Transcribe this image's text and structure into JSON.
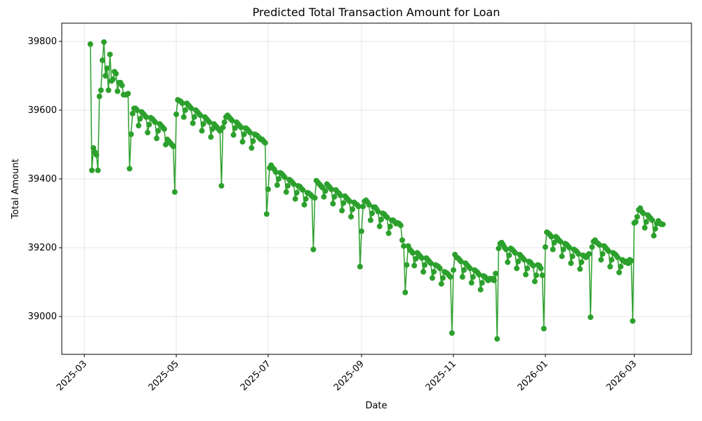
{
  "chart_data": {
    "type": "line",
    "title": "Predicted Total Transaction Amount for Loan",
    "xlabel": "Date",
    "ylabel": "Total Amount",
    "color": "#2ca02c",
    "grid": true,
    "ylim": [
      38890,
      39853
    ],
    "yticks": [
      39000,
      39200,
      39400,
      39600,
      39800
    ],
    "xticks": [
      "2025-03",
      "2025-05",
      "2025-07",
      "2025-09",
      "2025-11",
      "2026-01",
      "2026-03"
    ],
    "x": [
      "2025-03",
      "2025-03",
      "2025-03",
      "2025-03",
      "2025-03",
      "2025-03",
      "2025-03",
      "2025-03",
      "2025-03",
      "2025-03",
      "2025-03",
      "2025-03",
      "2025-03",
      "2025-03",
      "2025-03",
      "2025-03",
      "2025-03",
      "2025-03",
      "2025-03",
      "2025-03",
      "2025-03",
      "2025-03",
      "2025-03",
      "2025-03",
      "2025-03",
      "2025-03",
      "2025-03",
      "2025-04",
      "2025-04",
      "2025-04",
      "2025-04",
      "2025-04",
      "2025-04",
      "2025-04",
      "2025-04",
      "2025-04",
      "2025-04",
      "2025-04",
      "2025-04",
      "2025-04",
      "2025-04",
      "2025-04",
      "2025-04",
      "2025-04",
      "2025-04",
      "2025-04",
      "2025-04",
      "2025-04",
      "2025-04",
      "2025-04",
      "2025-04",
      "2025-04",
      "2025-04",
      "2025-04",
      "2025-04",
      "2025-04",
      "2025-04",
      "2025-05",
      "2025-05",
      "2025-05",
      "2025-05",
      "2025-05",
      "2025-05",
      "2025-05",
      "2025-05",
      "2025-05",
      "2025-05",
      "2025-05",
      "2025-05",
      "2025-05",
      "2025-05",
      "2025-05",
      "2025-05",
      "2025-05",
      "2025-05",
      "2025-05",
      "2025-05",
      "2025-05",
      "2025-05",
      "2025-05",
      "2025-05",
      "2025-05",
      "2025-05",
      "2025-05",
      "2025-05",
      "2025-05",
      "2025-05",
      "2025-05",
      "2025-06",
      "2025-06",
      "2025-06",
      "2025-06",
      "2025-06",
      "2025-06",
      "2025-06",
      "2025-06",
      "2025-06",
      "2025-06",
      "2025-06",
      "2025-06",
      "2025-06",
      "2025-06",
      "2025-06",
      "2025-06",
      "2025-06",
      "2025-06",
      "2025-06",
      "2025-06",
      "2025-06",
      "2025-06",
      "2025-06",
      "2025-06",
      "2025-06",
      "2025-06",
      "2025-06",
      "2025-06",
      "2025-06",
      "2025-06",
      "2025-07",
      "2025-07",
      "2025-07",
      "2025-07",
      "2025-07",
      "2025-07",
      "2025-07",
      "2025-07",
      "2025-07",
      "2025-07",
      "2025-07",
      "2025-07",
      "2025-07",
      "2025-07",
      "2025-07",
      "2025-07",
      "2025-07",
      "2025-07",
      "2025-07",
      "2025-07",
      "2025-07",
      "2025-07",
      "2025-07",
      "2025-07",
      "2025-07",
      "2025-07",
      "2025-07",
      "2025-07",
      "2025-07",
      "2025-07",
      "2025-07",
      "2025-08",
      "2025-08",
      "2025-08",
      "2025-08",
      "2025-08",
      "2025-08",
      "2025-08",
      "2025-08",
      "2025-08",
      "2025-08",
      "2025-08",
      "2025-08",
      "2025-08",
      "2025-08",
      "2025-08",
      "2025-08",
      "2025-08",
      "2025-08",
      "2025-08",
      "2025-08",
      "2025-08",
      "2025-08",
      "2025-08",
      "2025-08",
      "2025-08",
      "2025-08",
      "2025-08",
      "2025-08",
      "2025-08",
      "2025-08",
      "2025-08",
      "2025-09",
      "2025-09",
      "2025-09",
      "2025-09",
      "2025-09",
      "2025-09",
      "2025-09",
      "2025-09",
      "2025-09",
      "2025-09",
      "2025-09",
      "2025-09",
      "2025-09",
      "2025-09",
      "2025-09",
      "2025-09",
      "2025-09",
      "2025-09",
      "2025-09",
      "2025-09",
      "2025-09",
      "2025-09",
      "2025-09",
      "2025-09",
      "2025-09",
      "2025-09",
      "2025-09",
      "2025-09",
      "2025-09",
      "2025-09",
      "2025-10",
      "2025-10",
      "2025-10",
      "2025-10",
      "2025-10",
      "2025-10",
      "2025-10",
      "2025-10",
      "2025-10",
      "2025-10",
      "2025-10",
      "2025-10",
      "2025-10",
      "2025-10",
      "2025-10",
      "2025-10",
      "2025-10",
      "2025-10",
      "2025-10",
      "2025-10",
      "2025-10",
      "2025-10",
      "2025-10",
      "2025-10",
      "2025-10",
      "2025-10",
      "2025-10",
      "2025-10",
      "2025-10",
      "2025-10",
      "2025-10",
      "2025-11",
      "2025-11",
      "2025-11",
      "2025-11",
      "2025-11",
      "2025-11",
      "2025-11",
      "2025-11",
      "2025-11",
      "2025-11",
      "2025-11",
      "2025-11",
      "2025-11",
      "2025-11",
      "2025-11",
      "2025-11",
      "2025-11",
      "2025-11",
      "2025-11",
      "2025-11",
      "2025-11",
      "2025-11",
      "2025-11",
      "2025-11",
      "2025-11",
      "2025-11",
      "2025-11",
      "2025-11",
      "2025-11",
      "2025-11",
      "2025-12",
      "2025-12",
      "2025-12",
      "2025-12",
      "2025-12",
      "2025-12",
      "2025-12",
      "2025-12",
      "2025-12",
      "2025-12",
      "2025-12",
      "2025-12",
      "2025-12",
      "2025-12",
      "2025-12",
      "2025-12",
      "2025-12",
      "2025-12",
      "2025-12",
      "2025-12",
      "2025-12",
      "2025-12",
      "2025-12",
      "2025-12",
      "2025-12",
      "2025-12",
      "2025-12",
      "2025-12",
      "2025-12",
      "2025-12",
      "2025-12",
      "2026-01",
      "2026-01",
      "2026-01",
      "2026-01",
      "2026-01",
      "2026-01",
      "2026-01",
      "2026-01",
      "2026-01",
      "2026-01",
      "2026-01",
      "2026-01",
      "2026-01",
      "2026-01",
      "2026-01",
      "2026-01",
      "2026-01",
      "2026-01",
      "2026-01",
      "2026-01",
      "2026-01",
      "2026-01",
      "2026-01",
      "2026-01",
      "2026-01",
      "2026-01",
      "2026-01",
      "2026-01",
      "2026-01",
      "2026-01",
      "2026-01",
      "2026-02",
      "2026-02",
      "2026-02",
      "2026-02",
      "2026-02",
      "2026-02",
      "2026-02",
      "2026-02",
      "2026-02",
      "2026-02",
      "2026-02",
      "2026-02",
      "2026-02",
      "2026-02",
      "2026-02",
      "2026-02",
      "2026-02",
      "2026-02",
      "2026-02",
      "2026-02",
      "2026-02",
      "2026-02",
      "2026-02",
      "2026-02",
      "2026-02",
      "2026-02",
      "2026-02",
      "2026-02",
      "2026-03",
      "2026-03",
      "2026-03",
      "2026-03",
      "2026-03",
      "2026-03",
      "2026-03",
      "2026-03",
      "2026-03",
      "2026-03",
      "2026-03",
      "2026-03",
      "2026-03",
      "2026-03",
      "2026-03",
      "2026-03",
      "2026-03",
      "2026-03",
      "2026-03",
      "2026-03"
    ],
    "values": [
      39792,
      39425,
      39490,
      39478,
      39470,
      39425,
      39640,
      39658,
      39745,
      39798,
      39700,
      39722,
      39658,
      39762,
      39685,
      39690,
      39712,
      39706,
      39655,
      39680,
      39680,
      39672,
      39645,
      39645,
      39645,
      39648,
      39430,
      39530,
      39590,
      39605,
      39605,
      39600,
      39555,
      39575,
      39595,
      39590,
      39585,
      39580,
      39535,
      39558,
      39578,
      39575,
      39570,
      39565,
      39518,
      39540,
      39560,
      39555,
      39550,
      39545,
      39500,
      39515,
      39510,
      39505,
      39500,
      39495,
      39362,
      39588,
      39630,
      39628,
      39625,
      39620,
      39580,
      39600,
      39620,
      39615,
      39610,
      39605,
      39562,
      39580,
      39600,
      39595,
      39590,
      39585,
      39540,
      39560,
      39580,
      39575,
      39570,
      39565,
      39522,
      39545,
      39560,
      39555,
      39550,
      39545,
      39540,
      39380,
      39550,
      39565,
      39580,
      39585,
      39580,
      39575,
      39570,
      39528,
      39548,
      39565,
      39560,
      39555,
      39550,
      39508,
      39530,
      39548,
      39545,
      39540,
      39535,
      39490,
      39510,
      39530,
      39528,
      39525,
      39520,
      39515,
      39515,
      39510,
      39505,
      39298,
      39370,
      39432,
      39440,
      39432,
      39428,
      39420,
      39382,
      39400,
      39418,
      39415,
      39410,
      39405,
      39362,
      39380,
      39398,
      39395,
      39390,
      39385,
      39342,
      39360,
      39380,
      39378,
      39372,
      39368,
      39325,
      39342,
      39360,
      39358,
      39355,
      39350,
      39195,
      39345,
      39395,
      39390,
      39385,
      39380,
      39375,
      39348,
      39365,
      39385,
      39380,
      39375,
      39370,
      39328,
      39348,
      39368,
      39362,
      39358,
      39352,
      39308,
      39330,
      39350,
      39345,
      39340,
      39335,
      39290,
      39312,
      39332,
      39328,
      39325,
      39320,
      39145,
      39248,
      39320,
      39335,
      39338,
      39332,
      39325,
      39280,
      39300,
      39318,
      39318,
      39312,
      39305,
      39262,
      39282,
      39300,
      39298,
      39292,
      39288,
      39242,
      39262,
      39280,
      39280,
      39275,
      39270,
      39272,
      39270,
      39265,
      39222,
      39205,
      39070,
      39150,
      39205,
      39195,
      39190,
      39185,
      39148,
      39168,
      39185,
      39180,
      39175,
      39170,
      39130,
      39150,
      39170,
      39165,
      39160,
      39155,
      39112,
      39130,
      39150,
      39148,
      39145,
      39140,
      39095,
      39112,
      39130,
      39128,
      39125,
      39120,
      39115,
      38952,
      39135,
      39180,
      39172,
      39170,
      39165,
      39160,
      39115,
      39135,
      39155,
      39150,
      39145,
      39140,
      39098,
      39115,
      39135,
      39132,
      39128,
      39122,
      39078,
      39098,
      39118,
      39115,
      39110,
      39105,
      39110,
      39108,
      39110,
      39105,
      39125,
      38935,
      39198,
      39212,
      39215,
      39208,
      39200,
      39195,
      39158,
      39178,
      39198,
      39195,
      39190,
      39185,
      39140,
      39160,
      39180,
      39175,
      39170,
      39165,
      39122,
      39140,
      39160,
      39158,
      39152,
      39148,
      39102,
      39120,
      39150,
      39148,
      39140,
      39120,
      38965,
      39202,
      39245,
      39242,
      39238,
      39232,
      39195,
      39215,
      39232,
      39228,
      39222,
      39218,
      39175,
      39195,
      39212,
      39210,
      39205,
      39200,
      39155,
      39175,
      39195,
      39192,
      39188,
      39182,
      39138,
      39158,
      39178,
      39175,
      39172,
      39178,
      39182,
      38998,
      39202,
      39218,
      39222,
      39215,
      39212,
      39208,
      39165,
      39182,
      39205,
      39200,
      39195,
      39190,
      39145,
      39165,
      39185,
      39182,
      39178,
      39172,
      39128,
      39145,
      39165,
      39162,
      39158,
      39160,
      39155,
      39165,
      39162,
      38987,
      39272,
      39275,
      39290,
      39310,
      39315,
      39305,
      39300,
      39258,
      39275,
      39295,
      39290,
      39285,
      39280,
      39235,
      39255,
      39270,
      39278,
      39272,
      39268,
      39268
    ]
  }
}
